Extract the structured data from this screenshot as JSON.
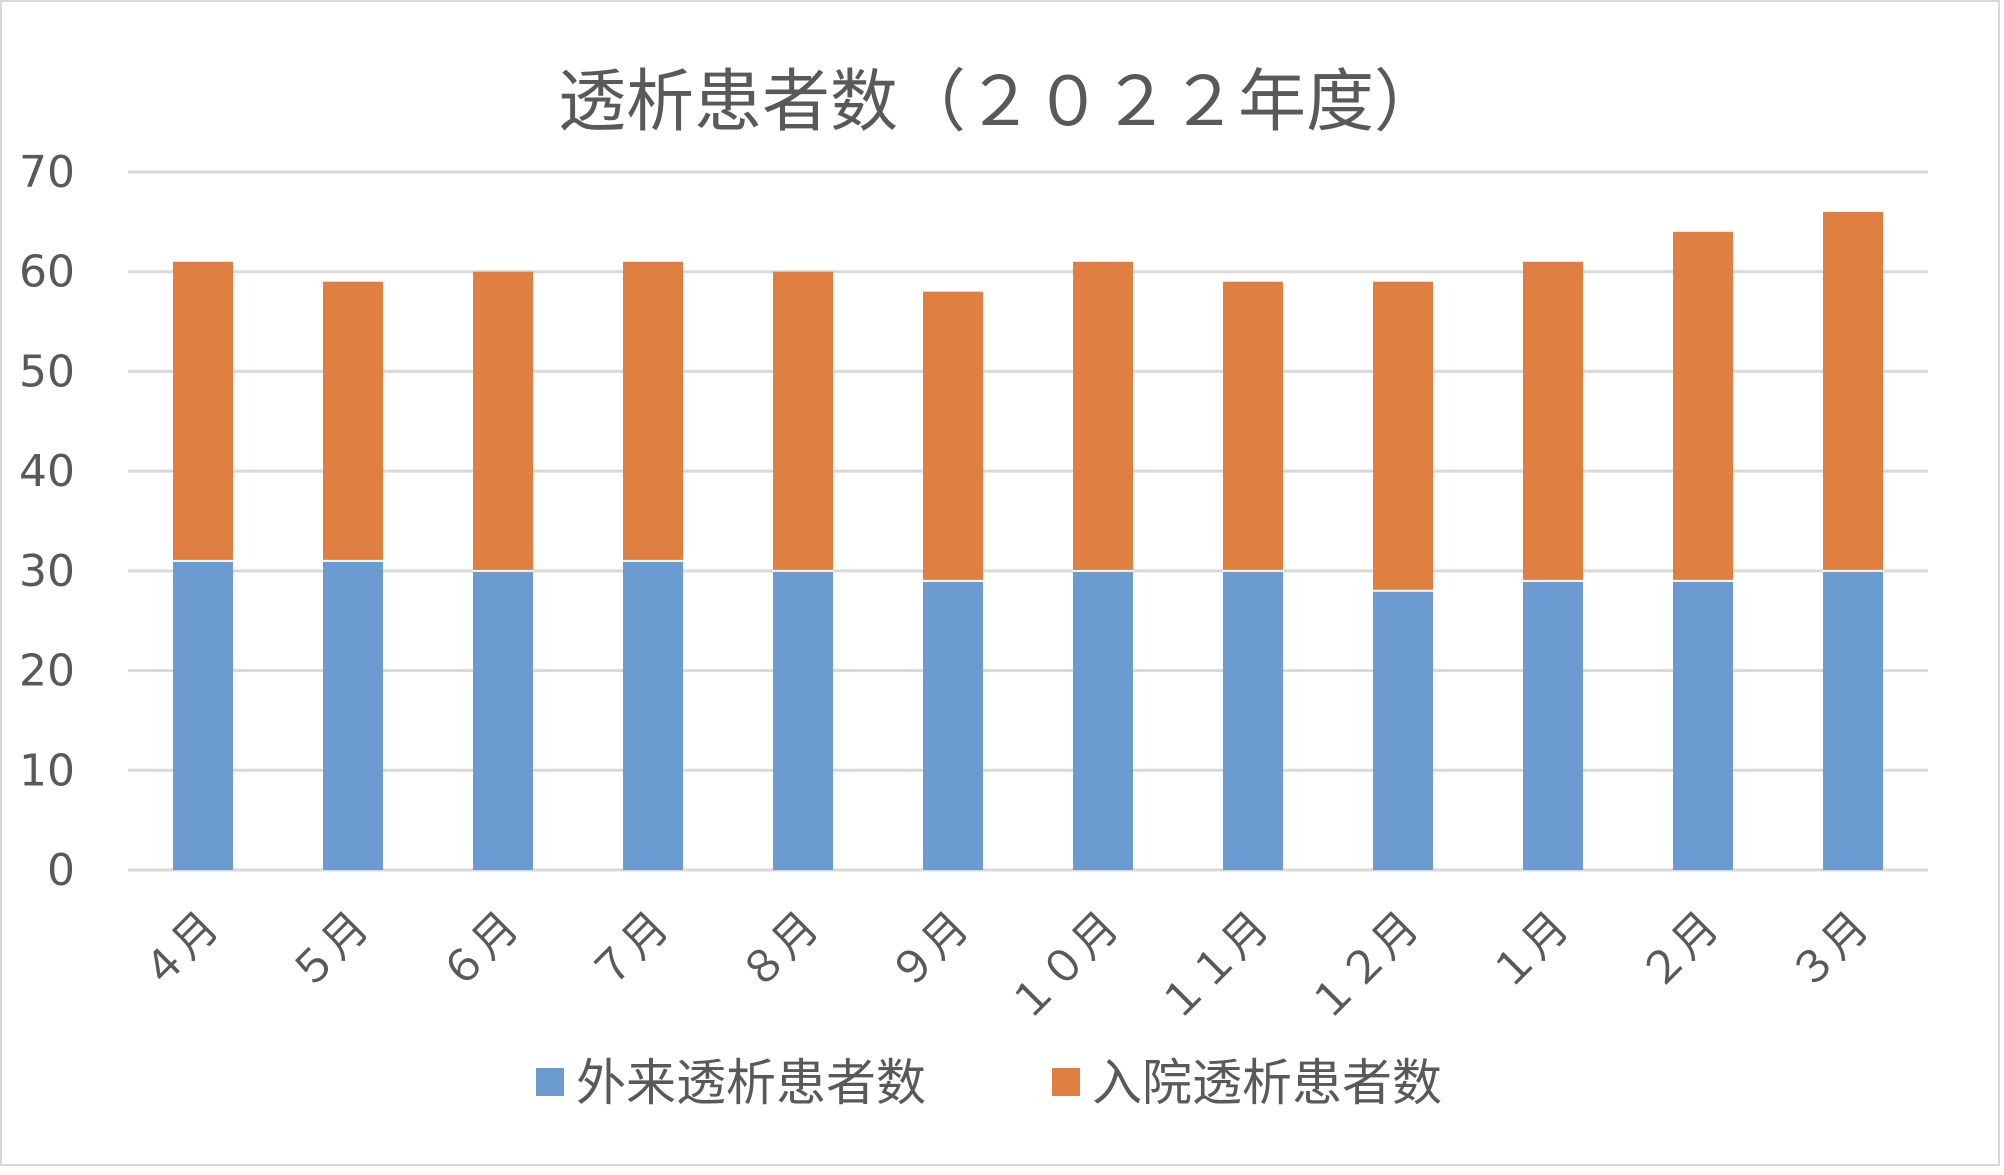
{
  "chart_data": {
    "type": "bar",
    "stacked": true,
    "title": "透析患者数（２０２２年度）",
    "categories": [
      "４月",
      "５月",
      "６月",
      "７月",
      "８月",
      "９月",
      "１０月",
      "１１月",
      "１２月",
      "１月",
      "２月",
      "３月"
    ],
    "series": [
      {
        "name": "外来透析患者数",
        "color": "#6b9bd1",
        "values": [
          31,
          31,
          30,
          31,
          30,
          29,
          30,
          30,
          28,
          29,
          29,
          30
        ]
      },
      {
        "name": "入院透析患者数",
        "color": "#e07f42",
        "values": [
          30,
          28,
          30,
          30,
          30,
          29,
          31,
          29,
          31,
          32,
          35,
          36
        ]
      }
    ],
    "ylim": [
      0,
      70
    ],
    "yticks": [
      "0",
      "10",
      "20",
      "30",
      "40",
      "50",
      "60",
      "70"
    ],
    "grid": true,
    "legend_position": "bottom",
    "xlabel": "",
    "ylabel": ""
  }
}
